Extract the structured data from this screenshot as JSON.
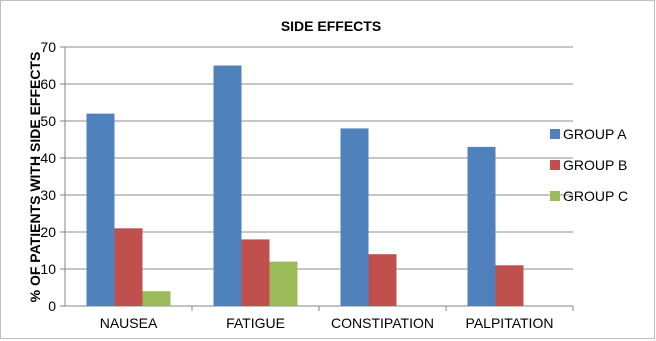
{
  "chart_data": {
    "type": "bar",
    "title": "SIDE EFFECTS",
    "xlabel": "",
    "ylabel": "% OF PATIENTS WITH SIDE EFFECTS",
    "categories": [
      "NAUSEA",
      "FATIGUE",
      "CONSTIPATION",
      "PALPITATION"
    ],
    "series": [
      {
        "name": "GROUP A",
        "color": "#4f81bd",
        "values": [
          52,
          65,
          48,
          43
        ]
      },
      {
        "name": "GROUP B",
        "color": "#c0504d",
        "values": [
          21,
          18,
          14,
          11
        ]
      },
      {
        "name": "GROUP C",
        "color": "#9bbb59",
        "values": [
          4,
          12,
          0,
          0
        ]
      }
    ],
    "ylim": [
      0,
      70
    ],
    "yticks": [
      0,
      10,
      20,
      30,
      40,
      50,
      60,
      70
    ],
    "grid": true,
    "legend": "right"
  }
}
